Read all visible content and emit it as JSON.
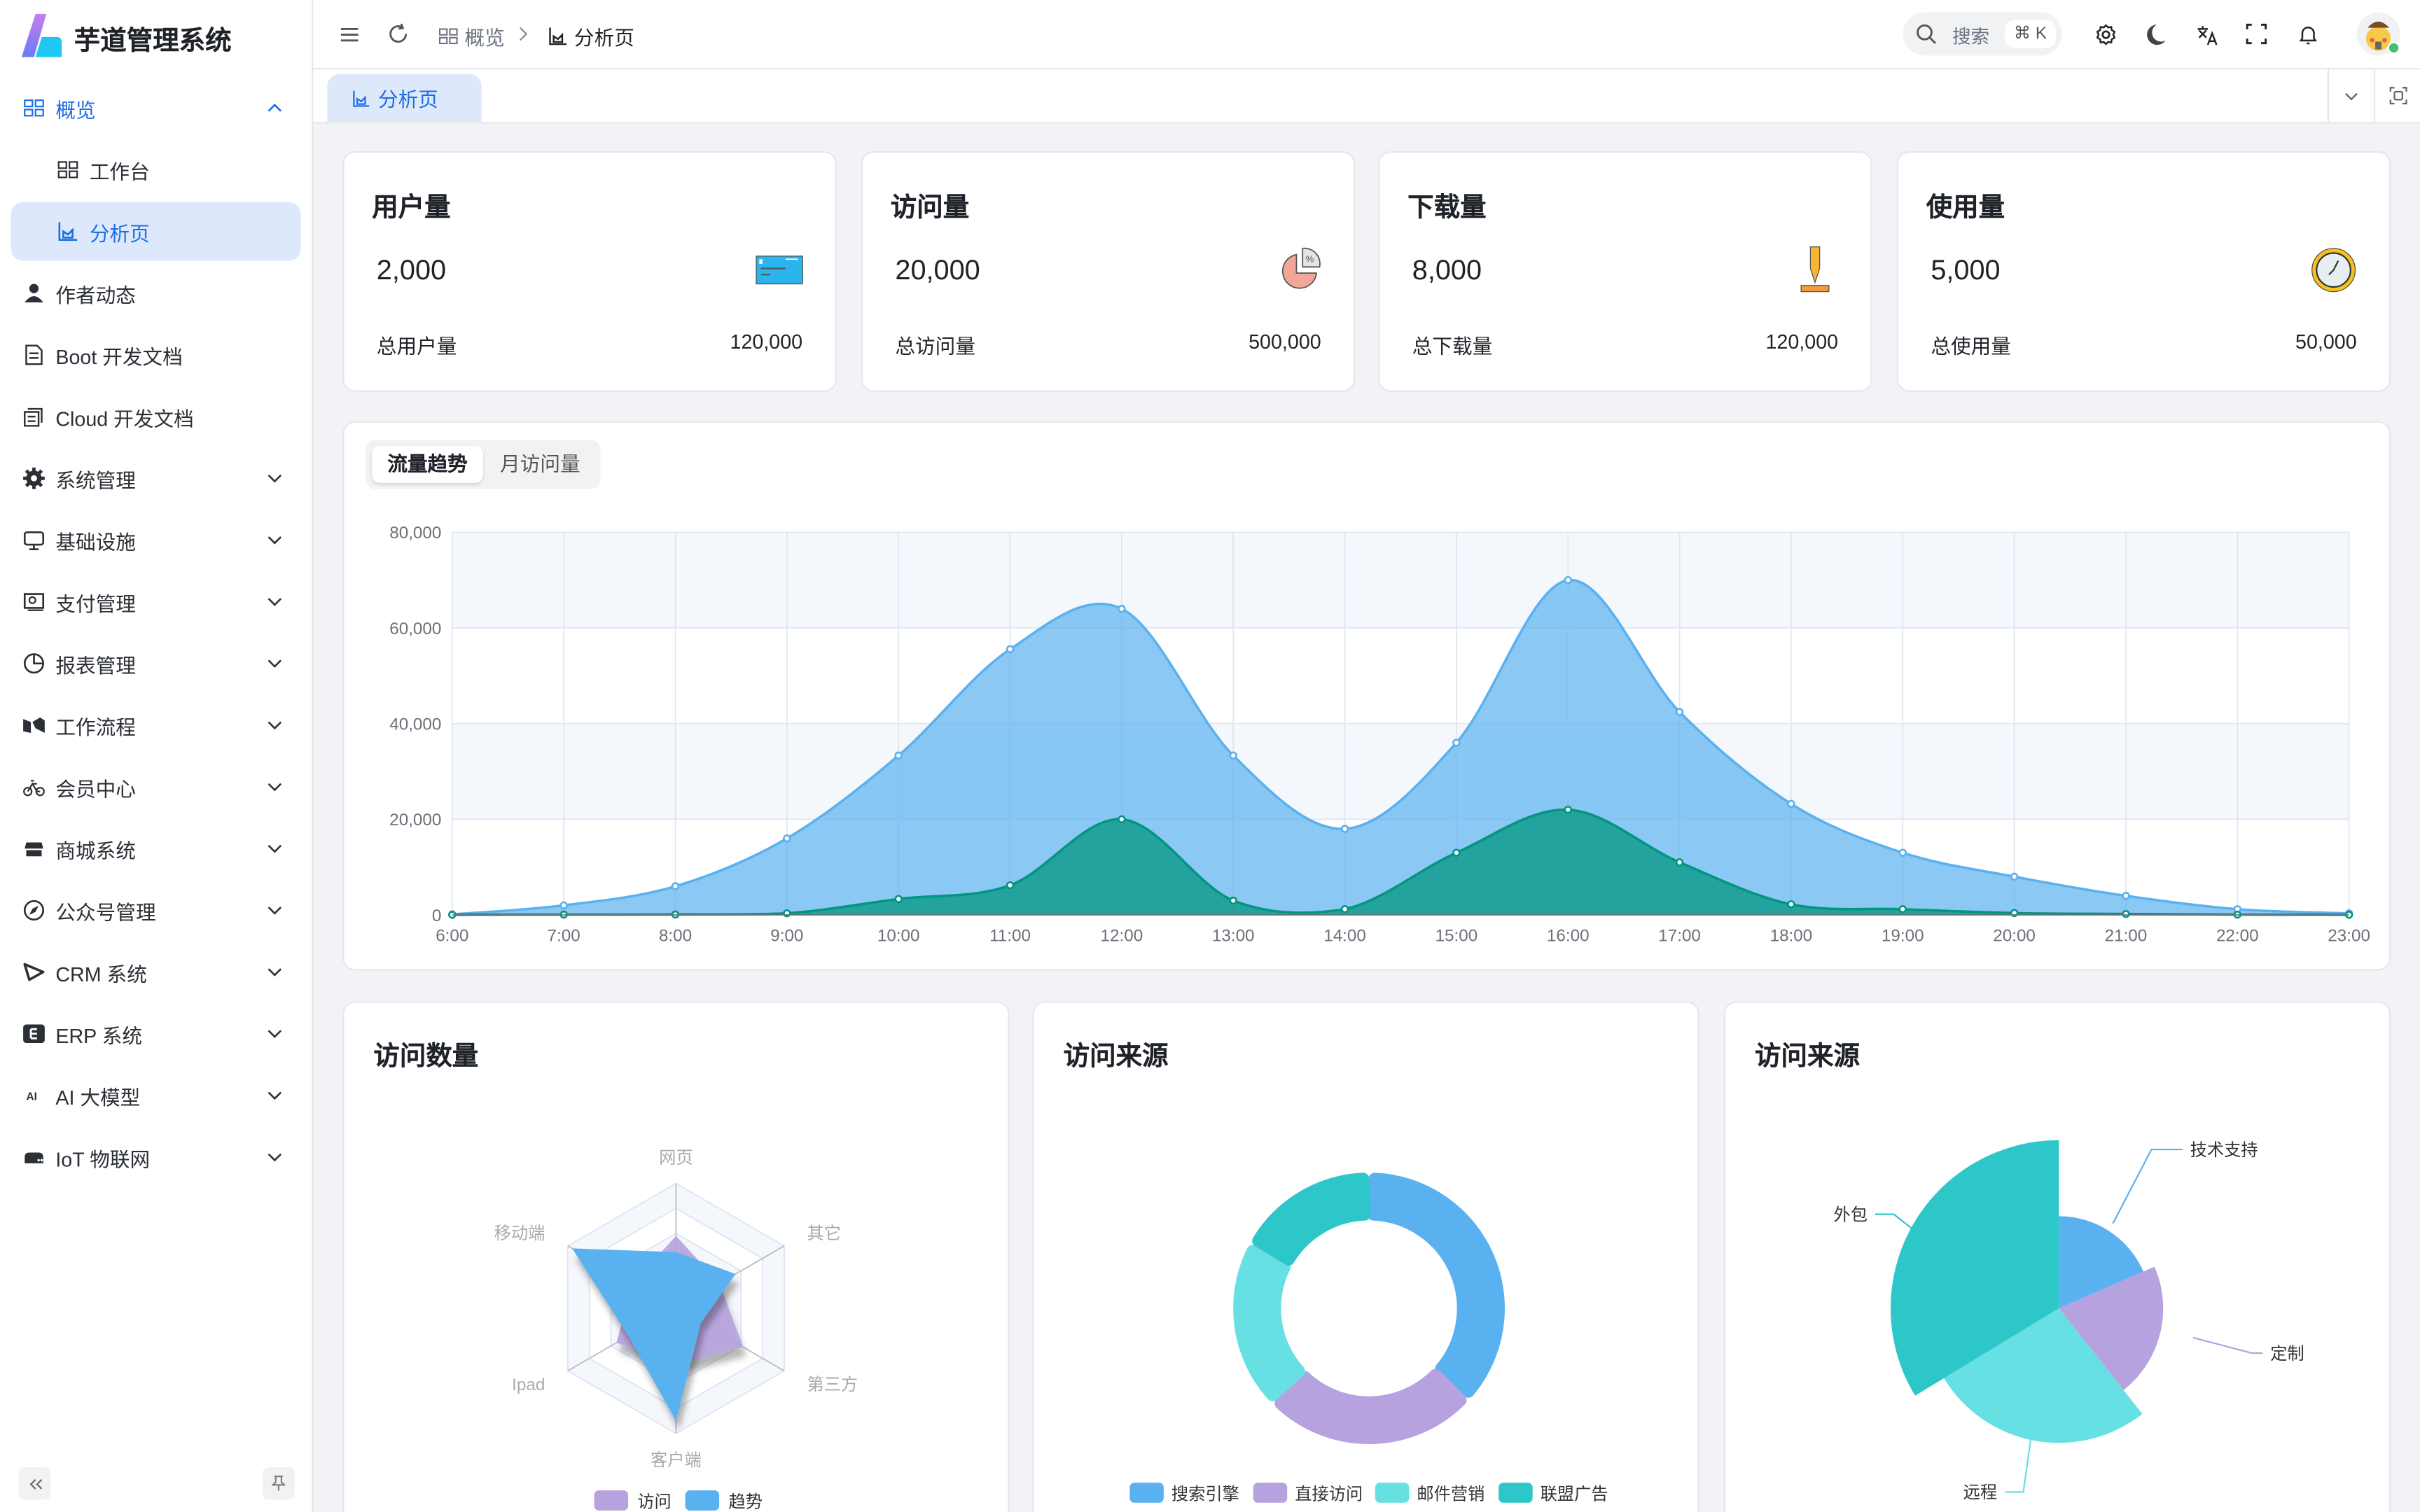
{
  "app": {
    "title": "芋道管理系统"
  },
  "sidebar": {
    "items": [
      {
        "label": "概览",
        "icon": "dashboard-icon",
        "state": "open"
      },
      {
        "label": "工作台",
        "icon": "workspace-icon",
        "sub": true
      },
      {
        "label": "分析页",
        "icon": "chart-icon",
        "sub": true,
        "state": "active"
      },
      {
        "label": "作者动态",
        "icon": "user-icon"
      },
      {
        "label": "Boot 开发文档",
        "icon": "document-icon"
      },
      {
        "label": "Cloud 开发文档",
        "icon": "documents-icon"
      },
      {
        "label": "系统管理",
        "icon": "gear-icon",
        "expandable": true
      },
      {
        "label": "基础设施",
        "icon": "monitor-icon",
        "expandable": true
      },
      {
        "label": "支付管理",
        "icon": "payment-icon",
        "expandable": true
      },
      {
        "label": "报表管理",
        "icon": "pie-chart-icon",
        "expandable": true
      },
      {
        "label": "工作流程",
        "icon": "workflow-icon",
        "expandable": true
      },
      {
        "label": "会员中心",
        "icon": "bicycle-icon",
        "expandable": true
      },
      {
        "label": "商城系统",
        "icon": "shop-icon",
        "expandable": true
      },
      {
        "label": "公众号管理",
        "icon": "compass-icon",
        "expandable": true
      },
      {
        "label": "CRM 系统",
        "icon": "crm-icon",
        "expandable": true
      },
      {
        "label": "ERP 系统",
        "icon": "erp-icon",
        "expandable": true
      },
      {
        "label": "AI 大模型",
        "icon": "ai-icon",
        "expandable": true
      },
      {
        "label": "IoT 物联网",
        "icon": "server-icon",
        "expandable": true
      }
    ]
  },
  "header": {
    "breadcrumb": [
      "概览",
      "分析页"
    ],
    "search_placeholder": "搜索",
    "search_shortcut": "⌘ K"
  },
  "tabs": [
    {
      "label": "分析页",
      "active": true
    }
  ],
  "stats": [
    {
      "title": "用户量",
      "value": "2,000",
      "total_label": "总用户量",
      "total": "120,000",
      "icon": "credit-card-icon"
    },
    {
      "title": "访问量",
      "value": "20,000",
      "total_label": "总访问量",
      "total": "500,000",
      "icon": "pie-percent-icon"
    },
    {
      "title": "下载量",
      "value": "8,000",
      "total_label": "总下载量",
      "total": "120,000",
      "icon": "download-icon"
    },
    {
      "title": "使用量",
      "value": "5,000",
      "total_label": "总使用量",
      "total": "50,000",
      "icon": "clock-icon"
    }
  ],
  "trend": {
    "tabs": [
      "流量趋势",
      "月访问量"
    ],
    "active_tab": 0
  },
  "cards": {
    "visits_title": "访问数量",
    "source_title": "访问来源",
    "source2_title": "访问来源"
  },
  "colors": {
    "primary": "#1b6fe5",
    "blue": "#5ab1ef",
    "green": "#019680",
    "purple": "#b6a2de",
    "cyan": "#67e0e3",
    "teal": "#2ec7c9"
  },
  "chart_data": [
    {
      "type": "area",
      "x": [
        "6:00",
        "7:00",
        "8:00",
        "9:00",
        "10:00",
        "11:00",
        "12:00",
        "13:00",
        "14:00",
        "15:00",
        "16:00",
        "17:00",
        "18:00",
        "19:00",
        "20:00",
        "21:00",
        "22:00",
        "23:00"
      ],
      "yticks": [
        "0",
        "20,000",
        "40,000",
        "60,000",
        "80,000"
      ],
      "ylim": [
        0,
        80000
      ],
      "grid": true,
      "series": [
        {
          "values": [
            111,
            2000,
            6000,
            16000,
            33333,
            55555,
            64000,
            33333,
            18000,
            36000,
            70000,
            42444,
            23222,
            13000,
            8000,
            4000,
            1200,
            333
          ],
          "color": "#5ab1ef"
        },
        {
          "values": [
            33,
            66,
            88,
            333,
            3333,
            6200,
            20000,
            3000,
            1200,
            13000,
            22000,
            11000,
            2221,
            1201,
            390,
            198,
            60,
            30
          ],
          "color": "#019680"
        }
      ]
    },
    {
      "type": "radar",
      "indicators": [
        "网页",
        "移动端",
        "Ipad",
        "客户端",
        "第三方",
        "其它"
      ],
      "max": 100,
      "legend": "bottom",
      "series": [
        {
          "name": "访问",
          "values": [
            58,
            40,
            55,
            45,
            62,
            40
          ],
          "color": "#b6a2de"
        },
        {
          "name": "趋势",
          "values": [
            45,
            96,
            44,
            90,
            23,
            55
          ],
          "color": "#5ab1ef"
        }
      ]
    },
    {
      "type": "pie",
      "variant": "donut",
      "legend": "bottom",
      "categories": [
        "搜索引擎",
        "直接访问",
        "邮件营销",
        "联盟广告"
      ],
      "values": [
        1048,
        735,
        580,
        484
      ],
      "colors": [
        "#5ab1ef",
        "#b6a2de",
        "#67e0e3",
        "#2ec7c9"
      ]
    },
    {
      "type": "pie",
      "variant": "rose",
      "categories": [
        "技术支持",
        "定制",
        "远程",
        "外包"
      ],
      "values": [
        274,
        310,
        400,
        500
      ],
      "colors": [
        "#5ab1ef",
        "#b6a2de",
        "#67e0e3",
        "#2ec7c9"
      ]
    }
  ]
}
